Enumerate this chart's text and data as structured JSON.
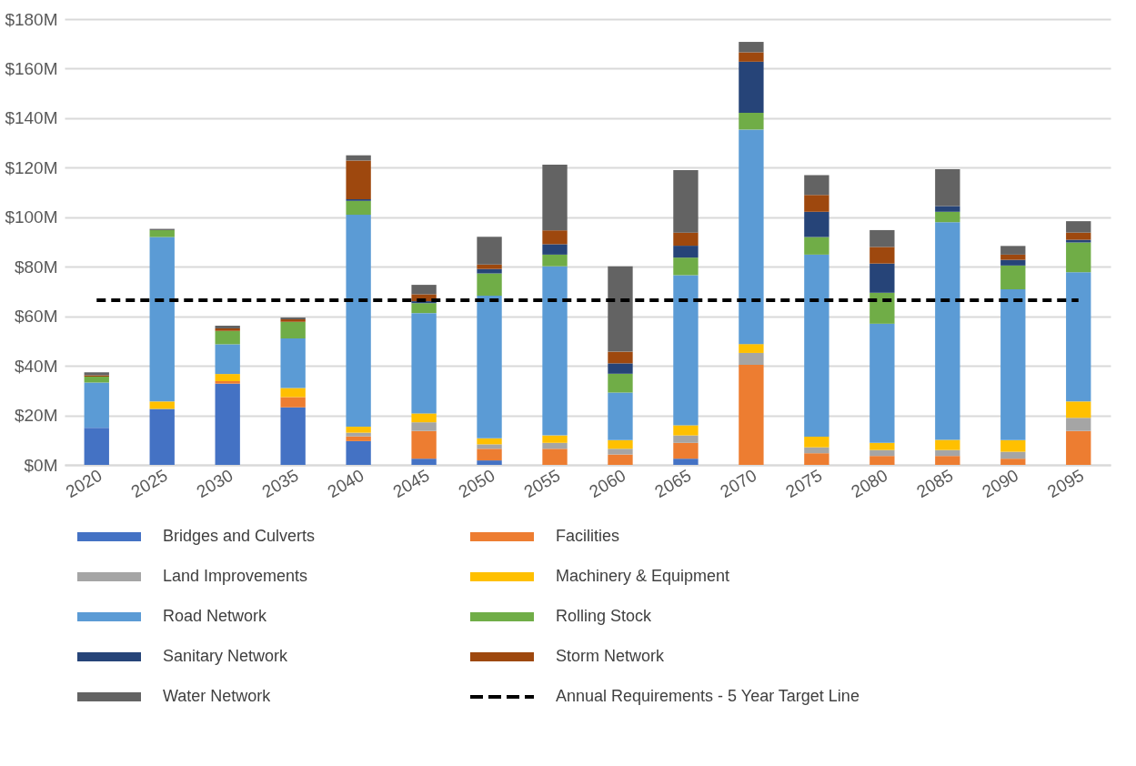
{
  "chart_data": {
    "type": "bar",
    "stacked": true,
    "categories": [
      "2020",
      "2025",
      "2030",
      "2035",
      "2040",
      "2045",
      "2050",
      "2055",
      "2060",
      "2065",
      "2070",
      "2075",
      "2080",
      "2085",
      "2090",
      "2095"
    ],
    "ylim": [
      0,
      180
    ],
    "yticks": [
      {
        "value": 0,
        "label": "$0M"
      },
      {
        "value": 20,
        "label": "$20M"
      },
      {
        "value": 40,
        "label": "$40M"
      },
      {
        "value": 60,
        "label": "$60M"
      },
      {
        "value": 80,
        "label": "$80M"
      },
      {
        "value": 100,
        "label": "$100M"
      },
      {
        "value": 120,
        "label": "$120M"
      },
      {
        "value": 140,
        "label": "$140M"
      },
      {
        "value": 160,
        "label": "$160M"
      },
      {
        "value": 180,
        "label": "$180M"
      }
    ],
    "grid": "y",
    "legend": "bottom",
    "series": [
      {
        "name": "Bridges and Culverts",
        "color": "#4472c4",
        "values": [
          15,
          22.6,
          32.8,
          23.2,
          9.6,
          2.5,
          1.8,
          0,
          0,
          2.5,
          0,
          0,
          0,
          0,
          0,
          0
        ]
      },
      {
        "name": "Facilities",
        "color": "#ed7d31",
        "values": [
          0,
          0,
          1,
          4.2,
          1.9,
          11.2,
          4.7,
          6.5,
          4.2,
          6.4,
          40.4,
          4.7,
          3.6,
          3.6,
          2.5,
          13.7
        ]
      },
      {
        "name": "Land Improvements",
        "color": "#a5a5a5",
        "values": [
          0,
          0,
          0,
          0,
          1.5,
          3.5,
          1.8,
          2.4,
          2.3,
          3,
          4.8,
          2.4,
          2.4,
          2.4,
          2.8,
          5.3
        ]
      },
      {
        "name": "Machinery & Equipment",
        "color": "#ffc000",
        "values": [
          0,
          3,
          2.9,
          3.6,
          2.4,
          3.6,
          2.4,
          3,
          3.5,
          4.1,
          3.6,
          4.3,
          2.9,
          4.1,
          4.7,
          6.6
        ]
      },
      {
        "name": "Road Network",
        "color": "#5b9bd5",
        "values": [
          18.2,
          66.4,
          12,
          20.1,
          85.6,
          40.5,
          57.6,
          68.3,
          19.2,
          60.6,
          86.6,
          73.5,
          48.1,
          87.9,
          60.9,
          52.2
        ]
      },
      {
        "name": "Rolling Stock",
        "color": "#70ad47",
        "values": [
          2.4,
          2.8,
          5.4,
          6.7,
          5.6,
          4,
          9,
          4.7,
          7.6,
          7.1,
          6.8,
          7.1,
          12.5,
          4.2,
          9.6,
          12
        ]
      },
      {
        "name": "Sanitary Network",
        "color": "#264478",
        "values": [
          0,
          0,
          0,
          0,
          0.7,
          0.8,
          1.8,
          4.2,
          4.2,
          4.8,
          20.6,
          10.2,
          11.8,
          2.3,
          2.3,
          1.1
        ]
      },
      {
        "name": "Storm Network",
        "color": "#9e480e",
        "values": [
          0.6,
          0,
          1,
          1,
          15.6,
          2.8,
          1.8,
          5.6,
          4.7,
          5.3,
          3.8,
          6.8,
          6.7,
          0,
          2.1,
          2.9
        ]
      },
      {
        "name": "Water Network",
        "color": "#636363",
        "values": [
          1.2,
          0.5,
          1.1,
          0.7,
          2.1,
          3.8,
          11.2,
          26.5,
          34.5,
          25.2,
          4.2,
          8,
          6.8,
          14.9,
          3.5,
          4.6
        ]
      },
      {
        "name": "Annual Requirements - 5 Year Target Line",
        "type": "line",
        "color": "#000000",
        "line_style": "dashed",
        "values": [
          66.5,
          66.5,
          66.5,
          66.5,
          66.5,
          66.5,
          66.5,
          66.5,
          66.5,
          66.5,
          66.5,
          66.5,
          66.5,
          66.5,
          66.5,
          66.5
        ]
      }
    ]
  }
}
